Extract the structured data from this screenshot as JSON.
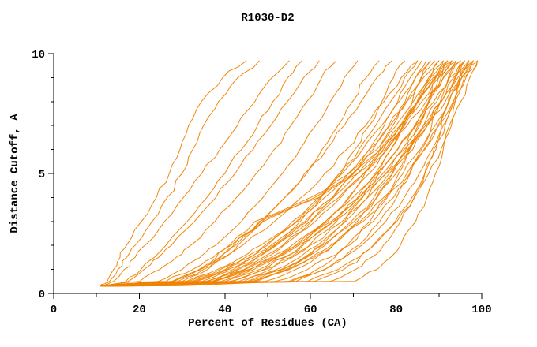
{
  "chart_data": {
    "type": "line",
    "title": "R1030-D2",
    "xlabel": "Percent of Residues (CA)",
    "ylabel": "Distance Cutoff, A",
    "xlim": [
      0,
      100
    ],
    "ylim": [
      0,
      10
    ],
    "x_major_ticks": [
      0,
      20,
      40,
      60,
      80,
      100
    ],
    "x_minor_step": 10,
    "y_major_ticks": [
      0,
      5,
      10
    ],
    "y_minor_step": 1,
    "grid": false,
    "legend": "none",
    "curve_color": "#f08200",
    "axis_color": "#000000",
    "background_color": "#ffffff",
    "note": "Ensemble of per-model cumulative curves: x = percent of CA residues within distance cutoff y (Angstroms). Each curve stored as x-values sampled at shared y_levels.",
    "y_levels": [
      0.3,
      0.5,
      1,
      1.5,
      2,
      3,
      4,
      5,
      6,
      7,
      8,
      9,
      9.7
    ],
    "curves_x_at_y_levels": [
      [
        11,
        12.5,
        14,
        15.5,
        17,
        20.5,
        24,
        27,
        29.5,
        31.5,
        34.5,
        39.5,
        45
      ],
      [
        11.5,
        13,
        15,
        17,
        19,
        23,
        26.5,
        30,
        32.5,
        35,
        38.5,
        43,
        48
      ],
      [
        11,
        14,
        16.5,
        19,
        21.3,
        25.9,
        30.3,
        34.6,
        38.8,
        42.9,
        47,
        51,
        55
      ],
      [
        11.2,
        16.8,
        20.4,
        23.5,
        26.2,
        31.2,
        35.8,
        40,
        43.9,
        47.6,
        51.2,
        54.7,
        58
      ],
      [
        11,
        17.3,
        21.1,
        24.5,
        27.5,
        32.9,
        37.9,
        42.4,
        46.6,
        50.7,
        54.6,
        58.4,
        62
      ],
      [
        11,
        20.1,
        24.8,
        28.6,
        32,
        37.7,
        42.7,
        47.3,
        51.5,
        55.4,
        59.1,
        62.6,
        66
      ],
      [
        11.3,
        24.4,
        30,
        34.2,
        37.8,
        43.9,
        48.9,
        53.4,
        57.5,
        61.2,
        64.6,
        67.9,
        71
      ],
      [
        11,
        27.8,
        34.1,
        38.7,
        42.5,
        48.8,
        54,
        58.6,
        62.7,
        66.4,
        69.8,
        73,
        76
      ],
      [
        11.6,
        33.3,
        40.5,
        45.6,
        49.9,
        56.7,
        62.3,
        67.1,
        71.3,
        75.2,
        78.7,
        82,
        85
      ],
      [
        11,
        37.2,
        44.5,
        49.6,
        53.7,
        60.2,
        65.4,
        69.8,
        73.7,
        77.2,
        80.4,
        83.3,
        86
      ],
      [
        11.8,
        41.9,
        49.1,
        54,
        57.9,
        64,
        68.8,
        72.7,
        76.2,
        79.2,
        82.1,
        84.6,
        87
      ],
      [
        11,
        30.9,
        38.3,
        43.8,
        48.3,
        55.8,
        62,
        67.4,
        72.2,
        76.6,
        80.7,
        84.5,
        88
      ],
      [
        12,
        47.4,
        54.3,
        58.9,
        62.5,
        68,
        72.2,
        75.8,
        78.8,
        81.5,
        83.8,
        86,
        88
      ],
      [
        11,
        34.6,
        42,
        47.5,
        52,
        59.2,
        65.1,
        70.1,
        74.6,
        78.6,
        82.4,
        85.8,
        89
      ],
      [
        11.5,
        43.2,
        50.6,
        55.7,
        59.7,
        66.1,
        71,
        75.1,
        78.8,
        81.9,
        84.9,
        87.6,
        90
      ],
      [
        11,
        31.5,
        39,
        44.7,
        49.3,
        57,
        63.3,
        68.8,
        73.8,
        78.3,
        82.5,
        86.4,
        90
      ],
      [
        12.2,
        54.9,
        61.5,
        65.7,
        69,
        73.9,
        77.6,
        80.6,
        83.2,
        85.5,
        87.5,
        89.3,
        91
      ],
      [
        11,
        39,
        46.8,
        52.2,
        56.5,
        63.5,
        69.1,
        73.7,
        77.9,
        81.6,
        85,
        88.1,
        91
      ],
      [
        11.4,
        35.5,
        43.2,
        48.9,
        53.5,
        61.1,
        67.1,
        72.4,
        77,
        81.2,
        85.1,
        88.7,
        92
      ],
      [
        12,
        49.3,
        56.5,
        61.4,
        65.2,
        70.9,
        75.4,
        79.1,
        82.3,
        85.1,
        87.6,
        89.9,
        92
      ],
      [
        11,
        44.4,
        52.1,
        57.4,
        61.6,
        68.2,
        73.3,
        77.6,
        81.4,
        84.6,
        87.7,
        90.5,
        93
      ],
      [
        11.2,
        32.2,
        40.1,
        45.9,
        50.8,
        58.7,
        65.3,
        71,
        76.2,
        80.9,
        85.2,
        89.2,
        93
      ],
      [
        12.5,
        56.6,
        63.4,
        67.8,
        71.2,
        76.2,
        80.1,
        83.2,
        85.9,
        88.3,
        90.3,
        92.2,
        94
      ],
      [
        11,
        40.1,
        48.1,
        53.7,
        58.2,
        65.4,
        71.3,
        76.1,
        80.4,
        84.3,
        87.8,
        91,
        94
      ],
      [
        11,
        45.2,
        53.1,
        58.5,
        62.8,
        69.5,
        74.8,
        79.2,
        83.1,
        86.4,
        89.5,
        92.4,
        95
      ],
      [
        11.6,
        32.8,
        40.8,
        46.8,
        51.7,
        59.9,
        66.6,
        72.5,
        77.8,
        82.6,
        87,
        91.1,
        95
      ],
      [
        13,
        64.6,
        70.5,
        74.2,
        77,
        81.1,
        84.2,
        86.7,
        88.8,
        90.6,
        92.2,
        93.7,
        95
      ],
      [
        13.5,
        70.3,
        75.5,
        78.7,
        81,
        84.6,
        87.2,
        89.2,
        91,
        92.4,
        93.8,
        94.9,
        96
      ],
      [
        11,
        45.6,
        53.6,
        59.1,
        63.4,
        70.2,
        75.6,
        80,
        83.9,
        87.3,
        90.5,
        93.4,
        96
      ],
      [
        11.3,
        36.7,
        44.8,
        50.8,
        55.6,
        63.5,
        69.9,
        75.4,
        80.3,
        84.7,
        88.8,
        92.5,
        96
      ],
      [
        12,
        51.7,
        59.3,
        64.5,
        68.5,
        74.6,
        79.4,
        83.3,
        86.7,
        89.7,
        92.4,
        94.8,
        97
      ],
      [
        11,
        41.1,
        49.4,
        55.3,
        59.9,
        67.4,
        73.4,
        78.4,
        82.9,
        86.9,
        90.6,
        93.9,
        97
      ],
      [
        12.8,
        60.9,
        67.8,
        71.6,
        74.6,
        79.8,
        83.7,
        86.7,
        89.3,
        91.4,
        93.4,
        95.3,
        97
      ],
      [
        11,
        46.4,
        54.6,
        60.2,
        64.7,
        71.6,
        77.1,
        81.6,
        85.6,
        89.1,
        92.3,
        95.3,
        98
      ],
      [
        12.3,
        55.4,
        63.2,
        68,
        71.9,
        77.6,
        81.9,
        85.4,
        88.4,
        91,
        93.7,
        95.9,
        98
      ],
      [
        11.5,
        37.3,
        45.6,
        51.7,
        56.7,
        64.8,
        71.3,
        76.9,
        81.9,
        86.4,
        90.6,
        94.4,
        98
      ],
      [
        11,
        46.8,
        55.1,
        60.8,
        65.3,
        72.3,
        77.9,
        82.5,
        86.5,
        90,
        93.3,
        96.3,
        99
      ],
      [
        12.6,
        59.3,
        66.5,
        71.2,
        74.8,
        80.2,
        84.3,
        87.6,
        90.5,
        92.9,
        95.1,
        97.2,
        99
      ],
      [
        11.2,
        37.6,
        46,
        52.2,
        57.2,
        65.4,
        72,
        77.7,
        82.7,
        87.3,
        91.5,
        95.4,
        99
      ],
      [
        11,
        27.6,
        34.4,
        39.6,
        44.1,
        51.6,
        57.8,
        63.3,
        68.4,
        72.9,
        77.2,
        81.2,
        85
      ],
      [
        11,
        26.2,
        32.5,
        37.3,
        41.4,
        48.3,
        54,
        59.1,
        63.7,
        67.9,
        71.8,
        75.5,
        79
      ],
      [
        11,
        35.9,
        42.7,
        47.6,
        51.4,
        57.6,
        62.5,
        66.7,
        70.4,
        73.7,
        76.7,
        79.4,
        82
      ],
      [
        11,
        28,
        34,
        38,
        41,
        47,
        60,
        69,
        75.5,
        80,
        84,
        88,
        92
      ],
      [
        11.3,
        29,
        35,
        39,
        42,
        48,
        61,
        70,
        76.5,
        81,
        85,
        89,
        93
      ],
      [
        11.6,
        30,
        36,
        40,
        43,
        49,
        62,
        71,
        77.5,
        82,
        86,
        90,
        94
      ]
    ]
  }
}
